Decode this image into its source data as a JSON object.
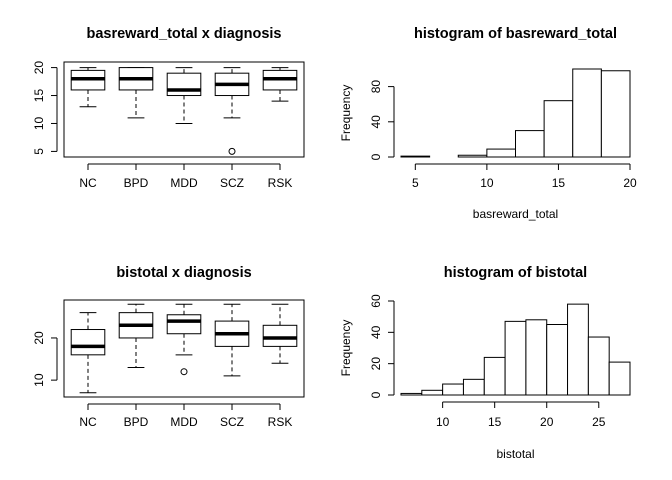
{
  "chart_data": [
    {
      "type": "boxplot",
      "title": "basreward_total x diagnosis",
      "xlabel": "",
      "ylabel": "",
      "ylim": [
        4,
        21
      ],
      "yticks": [
        5,
        10,
        15,
        20
      ],
      "categories": [
        "NC",
        "BPD",
        "MDD",
        "SCZ",
        "RSK"
      ],
      "boxes": [
        {
          "min": 13,
          "q1": 16,
          "median": 18,
          "q3": 19.5,
          "max": 20,
          "outliers": []
        },
        {
          "min": 11,
          "q1": 16,
          "median": 18,
          "q3": 20,
          "max": 20,
          "outliers": []
        },
        {
          "min": 10,
          "q1": 15,
          "median": 16,
          "q3": 19,
          "max": 20,
          "outliers": []
        },
        {
          "min": 11,
          "q1": 15,
          "median": 17,
          "q3": 19,
          "max": 20,
          "outliers": [
            5
          ]
        },
        {
          "min": 14,
          "q1": 16,
          "median": 18,
          "q3": 19.5,
          "max": 20,
          "outliers": []
        }
      ]
    },
    {
      "type": "histogram",
      "title": "histogram of basreward_total",
      "xlabel": "basreward_total",
      "ylabel": "Frequency",
      "xlim": [
        4,
        20
      ],
      "ylim": [
        0,
        100
      ],
      "xticks": [
        5,
        10,
        15,
        20
      ],
      "yticks": [
        0,
        40,
        80
      ],
      "bin_edges": [
        4,
        6,
        8,
        10,
        12,
        14,
        16,
        18,
        20
      ],
      "counts": [
        1,
        0,
        2,
        9,
        30,
        64,
        100,
        98
      ]
    },
    {
      "type": "boxplot",
      "title": "bistotal x diagnosis",
      "xlabel": "",
      "ylabel": "",
      "ylim": [
        6,
        29
      ],
      "yticks": [
        10,
        20
      ],
      "categories": [
        "NC",
        "BPD",
        "MDD",
        "SCZ",
        "RSK"
      ],
      "boxes": [
        {
          "min": 7,
          "q1": 16,
          "median": 18,
          "q3": 22,
          "max": 26,
          "outliers": []
        },
        {
          "min": 13,
          "q1": 20,
          "median": 23,
          "q3": 26,
          "max": 28,
          "outliers": []
        },
        {
          "min": 16,
          "q1": 21,
          "median": 24,
          "q3": 25.5,
          "max": 28,
          "outliers": [
            12
          ]
        },
        {
          "min": 11,
          "q1": 18,
          "median": 21,
          "q3": 24,
          "max": 28,
          "outliers": []
        },
        {
          "min": 14,
          "q1": 18,
          "median": 20,
          "q3": 23,
          "max": 28,
          "outliers": []
        }
      ]
    },
    {
      "type": "histogram",
      "title": "histogram of bistotal",
      "xlabel": "bistotal",
      "ylabel": "Frequency",
      "xlim": [
        6,
        28
      ],
      "ylim": [
        0,
        60
      ],
      "xticks": [
        10,
        15,
        20,
        25
      ],
      "yticks": [
        0,
        20,
        40,
        60
      ],
      "bin_edges": [
        6,
        8,
        10,
        12,
        14,
        16,
        18,
        20,
        22,
        24,
        26,
        28
      ],
      "counts": [
        1,
        3,
        7,
        10,
        24,
        47,
        48,
        45,
        58,
        37,
        21
      ]
    }
  ]
}
